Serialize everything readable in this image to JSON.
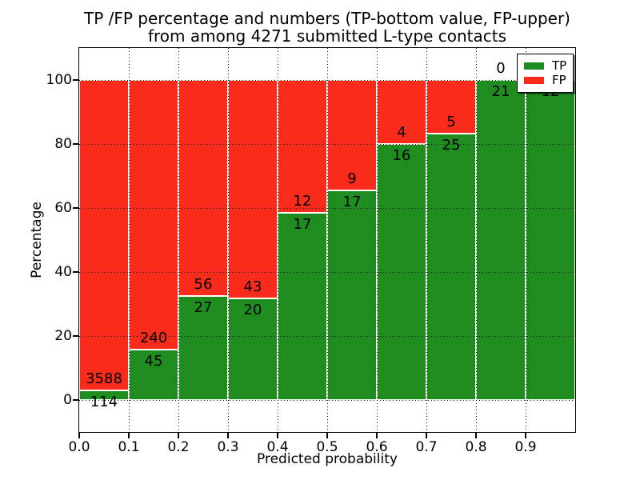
{
  "title": {
    "line1": "TP /FP percentage and numbers (TP-bottom value, FP-upper)",
    "line2": "from among 4271 submitted L-type contacts"
  },
  "axes": {
    "x_label": "Predicted probability",
    "y_label": "Percentage",
    "x_tick_labels": [
      "0.0",
      "0.1",
      "0.2",
      "0.3",
      "0.4",
      "0.5",
      "0.6",
      "0.7",
      "0.8",
      "0.9"
    ],
    "y_tick_labels": [
      "0",
      "20",
      "40",
      "60",
      "80",
      "100"
    ],
    "grid_style": "dotted"
  },
  "legend": {
    "position": "upper-right",
    "entries": [
      {
        "label": "TP",
        "color": "#1e8c1e"
      },
      {
        "label": "FP",
        "color": "#f92c1c"
      }
    ]
  },
  "chart_data": {
    "type": "bar",
    "stacked": true,
    "normalized": "each bin scaled to 100%",
    "title": "TP /FP percentage and numbers (TP-bottom value, FP-upper) from among 4271 submitted L-type contacts",
    "xlabel": "Predicted probability",
    "ylabel": "Percentage",
    "total_contacts": 4271,
    "bin_width": 0.1,
    "bin_starts": [
      0.0,
      0.1,
      0.2,
      0.3,
      0.4,
      0.5,
      0.6,
      0.7,
      0.8,
      0.9
    ],
    "series": [
      {
        "name": "TP",
        "color": "#1e8c1e",
        "counts": [
          114,
          45,
          27,
          20,
          17,
          17,
          16,
          25,
          21,
          12
        ]
      },
      {
        "name": "FP",
        "color": "#f92c1c",
        "counts": [
          3588,
          240,
          56,
          43,
          12,
          9,
          4,
          5,
          0,
          0
        ]
      }
    ],
    "tp_percent": [
      3.1,
      15.8,
      32.5,
      31.7,
      58.6,
      65.4,
      80.0,
      83.3,
      100.0,
      100.0
    ],
    "xlim": [
      0,
      1
    ],
    "ylim": [
      -10,
      110
    ],
    "grid": true,
    "legend_position": "upper right"
  }
}
